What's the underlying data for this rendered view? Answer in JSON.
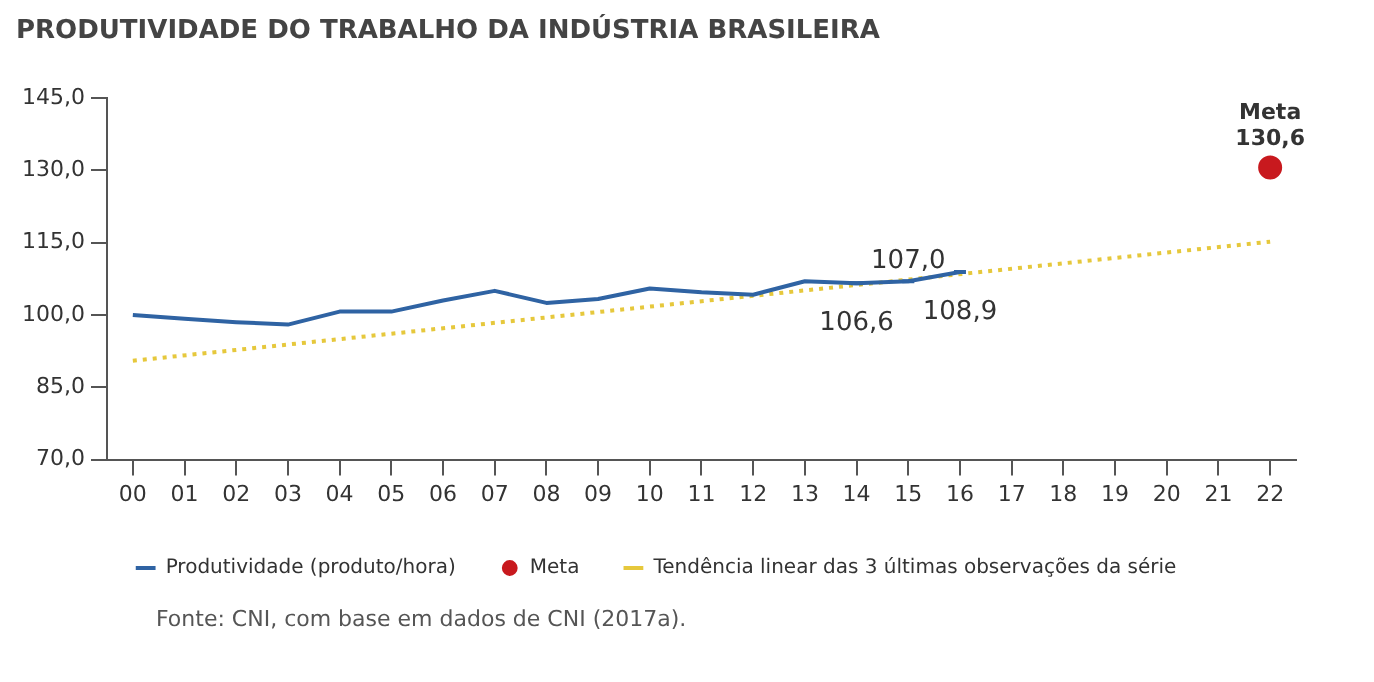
{
  "chart_data": {
    "type": "line",
    "title": "PRODUTIVIDADE DO TRABALHO DA INDÚSTRIA BRASILEIRA",
    "categories": [
      "00",
      "01",
      "02",
      "03",
      "04",
      "05",
      "06",
      "07",
      "08",
      "09",
      "10",
      "11",
      "12",
      "13",
      "14",
      "15",
      "16",
      "17",
      "18",
      "19",
      "20",
      "21",
      "22"
    ],
    "series": [
      {
        "name": "Produtividade (produto/hora)",
        "color": "#2f63a3",
        "values": [
          100,
          99.2,
          98.5,
          98,
          100.7,
          100.7,
          103,
          105,
          102.5,
          103.3,
          105.5,
          104.7,
          104.2,
          107,
          106.6,
          107.0,
          108.9,
          null,
          null,
          null,
          null,
          null,
          null
        ],
        "value_labels": [
          null,
          null,
          null,
          null,
          null,
          null,
          null,
          null,
          null,
          null,
          null,
          null,
          null,
          null,
          "106,6",
          "107,0",
          "108,9",
          null,
          null,
          null,
          null,
          null,
          null
        ]
      },
      {
        "name": "Meta",
        "type": "scatter",
        "color": "#c8191e",
        "x": [
          "22"
        ],
        "values": [
          130.6
        ],
        "value_labels": [
          "130,6"
        ]
      },
      {
        "name": "Tendência linear das 3 últimas observações da série",
        "color": "#e6c83c",
        "line_style": "dotted",
        "x": [
          "00",
          "22"
        ],
        "values": [
          90.5,
          115.2
        ]
      }
    ],
    "ylim": [
      70,
      145
    ],
    "yticks": [
      {
        "value": 70,
        "label": "70,0"
      },
      {
        "value": 85,
        "label": "85,0"
      },
      {
        "value": 100,
        "label": "100,0"
      },
      {
        "value": 115,
        "label": "115,0"
      },
      {
        "value": 130,
        "label": "130,0"
      },
      {
        "value": 145,
        "label": "145,0"
      }
    ],
    "grid": false,
    "legend": "bottom",
    "annotations": [
      "Fonte: CNI, com base em dados de CNI (2017a)."
    ]
  }
}
